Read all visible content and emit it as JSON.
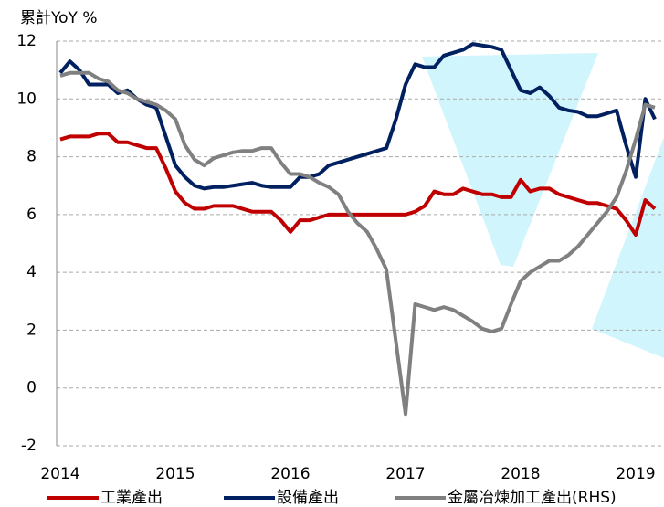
{
  "chart_data": {
    "type": "line",
    "y_label": "累計YoY %",
    "categories": [
      "2014",
      null,
      null,
      null,
      null,
      null,
      null,
      null,
      null,
      null,
      null,
      null,
      "2015",
      null,
      null,
      null,
      null,
      null,
      null,
      null,
      null,
      null,
      null,
      null,
      "2016",
      null,
      null,
      null,
      null,
      null,
      null,
      null,
      null,
      null,
      null,
      null,
      "2017",
      null,
      null,
      null,
      null,
      null,
      null,
      null,
      null,
      null,
      null,
      null,
      "2018",
      null,
      null,
      null,
      null,
      null,
      null,
      null,
      null,
      null,
      null,
      null,
      "2019",
      null,
      null
    ],
    "ylim": [
      -2,
      12
    ],
    "yticks": [
      -2,
      0,
      2,
      4,
      6,
      8,
      10,
      12
    ],
    "grid": true,
    "series": [
      {
        "name": "工業產出",
        "color": "#c00000",
        "values": [
          8.6,
          8.7,
          8.7,
          8.7,
          8.8,
          8.8,
          8.5,
          8.5,
          8.4,
          8.3,
          8.3,
          7.6,
          6.8,
          6.4,
          6.2,
          6.2,
          6.3,
          6.3,
          6.3,
          6.2,
          6.1,
          6.1,
          6.1,
          5.8,
          5.4,
          5.8,
          5.8,
          5.9,
          6.0,
          6.0,
          6.0,
          6.0,
          6.0,
          6.0,
          6.0,
          6.0,
          6.0,
          6.1,
          6.3,
          6.8,
          6.7,
          6.7,
          6.9,
          6.8,
          6.7,
          6.7,
          6.6,
          6.6,
          7.2,
          6.8,
          6.9,
          6.9,
          6.7,
          6.6,
          6.5,
          6.4,
          6.4,
          6.3,
          6.2,
          5.8,
          5.3,
          6.5,
          6.2
        ]
      },
      {
        "name": "設備產出",
        "color": "#002060",
        "values": [
          10.9,
          11.3,
          11.0,
          10.5,
          10.5,
          10.5,
          10.2,
          10.3,
          10.0,
          9.8,
          9.7,
          8.7,
          7.7,
          7.3,
          7.0,
          6.9,
          6.95,
          6.95,
          7.0,
          7.05,
          7.1,
          7.0,
          6.95,
          6.95,
          6.95,
          7.3,
          7.3,
          7.4,
          7.7,
          7.8,
          7.9,
          8.0,
          8.1,
          8.2,
          8.3,
          9.3,
          10.5,
          11.2,
          11.1,
          11.1,
          11.5,
          11.6,
          11.7,
          11.9,
          11.85,
          11.8,
          11.7,
          11.0,
          10.3,
          10.2,
          10.4,
          10.1,
          9.7,
          9.6,
          9.55,
          9.4,
          9.4,
          9.5,
          9.6,
          8.4,
          7.3,
          10.0,
          9.3
        ]
      },
      {
        "name": "金屬冶煉加工產出(RHS)",
        "color": "#808080",
        "values": [
          10.8,
          10.9,
          10.9,
          10.9,
          10.7,
          10.6,
          10.3,
          10.2,
          10.0,
          9.9,
          9.8,
          9.6,
          9.3,
          8.4,
          7.9,
          7.7,
          7.95,
          8.05,
          8.15,
          8.2,
          8.2,
          8.3,
          8.3,
          7.8,
          7.4,
          7.4,
          7.3,
          7.1,
          6.95,
          6.7,
          6.1,
          5.7,
          5.4,
          4.8,
          4.1,
          1.6,
          -0.9,
          2.9,
          2.8,
          2.7,
          2.8,
          2.7,
          2.5,
          2.3,
          2.05,
          1.95,
          2.05,
          2.9,
          3.7,
          4.0,
          4.2,
          4.4,
          4.4,
          4.6,
          4.9,
          5.3,
          5.7,
          6.1,
          6.6,
          7.5,
          8.6,
          9.8,
          9.7
        ]
      }
    ]
  }
}
